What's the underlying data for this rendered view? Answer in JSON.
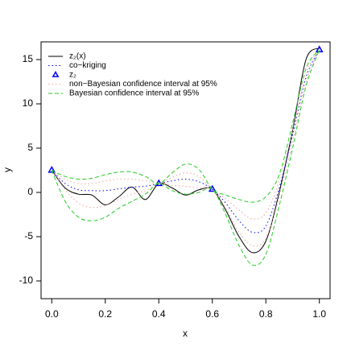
{
  "chart_data": {
    "type": "line",
    "x_label": "x",
    "y_label": "y",
    "xlim": [
      -0.04,
      1.04
    ],
    "ylim": [
      -12,
      17
    ],
    "xticks": [
      {
        "value": 0,
        "label": "0.0"
      },
      0.2,
      0.4,
      0.6,
      0.8,
      {
        "value": 1,
        "label": "1.0"
      }
    ],
    "yticks": [
      -10,
      -5,
      0,
      5,
      10,
      15
    ],
    "legend": "top-left",
    "x": [
      0,
      0.05,
      0.1,
      0.15,
      0.2,
      0.25,
      0.3,
      0.35,
      0.4,
      0.45,
      0.5,
      0.55,
      0.6,
      0.65,
      0.7,
      0.75,
      0.8,
      0.85,
      0.9,
      0.95,
      1.0
    ],
    "series": [
      {
        "name": "z₂(x)",
        "color": "#000000",
        "style": "solid",
        "values": [
          2.5,
          0.5,
          -0.2,
          -0.3,
          -1.4,
          -0.5,
          0.6,
          -0.8,
          1.0,
          0.5,
          -0.3,
          0.3,
          0.35,
          -2.0,
          -5.0,
          -6.8,
          -5.5,
          0.0,
          7.0,
          15.0,
          16.3
        ]
      },
      {
        "name": "co−kriging",
        "color": "#0000ff",
        "style": "dotted",
        "values": [
          2.5,
          1.0,
          0.3,
          0.2,
          0.2,
          0.4,
          0.6,
          0.7,
          1.0,
          1.3,
          1.5,
          1.2,
          0.35,
          -1.2,
          -3.2,
          -4.5,
          -3.8,
          0.5,
          6.5,
          13.0,
          16.1
        ]
      },
      {
        "name": "z₂",
        "color": "#0000ff",
        "style": "triangle",
        "x": [
          0,
          0.4,
          0.6,
          1.0
        ],
        "values": [
          2.5,
          1.0,
          0.35,
          16.1
        ]
      },
      {
        "name": "non−Bayesian confidence interval at 95%",
        "color": "#f4a0a0",
        "style": "dotted",
        "upper": [
          2.5,
          1.5,
          1.0,
          1.0,
          1.3,
          1.5,
          1.5,
          1.3,
          1.0,
          1.7,
          2.2,
          1.8,
          0.35,
          -0.7,
          -2.0,
          -3.0,
          -2.3,
          1.3,
          7.0,
          13.5,
          16.1
        ],
        "lower": [
          2.5,
          0.3,
          -1.2,
          -1.7,
          -1.5,
          -0.8,
          -0.2,
          0.2,
          1.0,
          0.8,
          0.7,
          0.5,
          0.35,
          -1.8,
          -4.5,
          -6.0,
          -5.2,
          -0.5,
          5.7,
          12.5,
          16.1
        ]
      },
      {
        "name": "Bayesian confidence interval at 95%",
        "color": "#22cc22",
        "style": "dashed",
        "upper": [
          2.5,
          1.8,
          1.5,
          1.6,
          2.0,
          2.3,
          2.3,
          1.8,
          1.0,
          2.2,
          3.2,
          2.6,
          0.35,
          -0.3,
          -0.8,
          -1.1,
          -0.5,
          2.0,
          7.8,
          14.0,
          16.1
        ],
        "lower": [
          2.5,
          -1.0,
          -2.8,
          -3.2,
          -2.8,
          -1.8,
          -1.0,
          -0.2,
          1.0,
          0.2,
          -0.2,
          0.0,
          0.35,
          -2.5,
          -6.0,
          -8.2,
          -7.0,
          -1.5,
          5.0,
          12.0,
          16.1
        ]
      }
    ]
  }
}
